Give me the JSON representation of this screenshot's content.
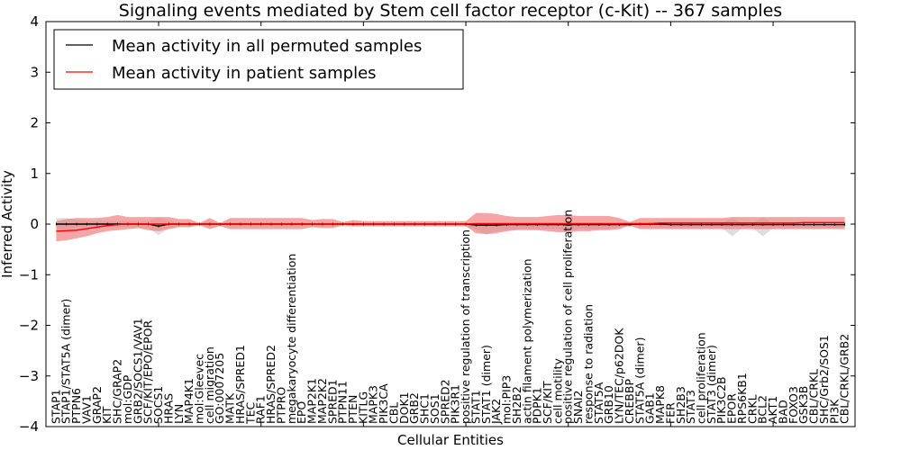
{
  "chart_data": {
    "type": "line",
    "title": "Signaling events mediated by Stem cell factor receptor (c-Kit) -- 367 samples",
    "xlabel": "Cellular Entities",
    "ylabel": "Inferred Activity",
    "ylim": [
      -4,
      4
    ],
    "xlim": [
      -1,
      78
    ],
    "yticks": [
      -4,
      -3,
      -2,
      -1,
      0,
      1,
      2,
      3,
      4
    ],
    "ytick_labels": [
      "−4",
      "−3",
      "−2",
      "−1",
      "0",
      "1",
      "2",
      "3",
      "4"
    ],
    "grid": false,
    "legend_position": "top-left",
    "legend": [
      {
        "label": "Mean activity in all permuted samples",
        "color": "#000000"
      },
      {
        "label": "Mean activity in patient samples",
        "color": "#ff0000"
      }
    ],
    "categories": [
      "STAP1",
      "STAP1/STAT5A (dimer)",
      "PTPN6",
      "VAV1",
      "GRAP2",
      "KIT",
      "SHC/GRAP2",
      "mol:GDP",
      "GRB2/SOCS1/VAV1",
      "SCF/KIT/EPO/EPOR",
      "SOCS1",
      "HRAS",
      "LYN",
      "MAP4K1",
      "mol:Gleevec",
      "cell migration",
      "GO:0007205",
      "MATK",
      "HRAS/SPRED1",
      "TEC",
      "RAF1",
      "HRAS/SPRED2",
      "PTPRO",
      "megakaryocyte differentiation",
      "EPO",
      "MAP2K1",
      "MAP2K2",
      "SPRED1",
      "PTPN11",
      "PTEN",
      "KITLG",
      "MAPK3",
      "PIK3CA",
      "CBL",
      "DOK1",
      "GRB2",
      "SHC1",
      "SOS1",
      "SPRED2",
      "PIK3R1",
      "positive regulation of transcription",
      "STAT1",
      "STAT1 (dimer)",
      "JAK2",
      "mol:PIP3",
      "SH2B2",
      "actin filament polymerization",
      "PDPK1",
      "SCF/KIT",
      "cell motility",
      "positive regulation of cell proliferation",
      "SNAI2",
      "response to radiation",
      "STAT5A",
      "GRB10",
      "LYN/TEC/p62DOK",
      "CREBBP",
      "STAT5A (dimer)",
      "GAB1",
      "MAPK8",
      "FER",
      "SH2B3",
      "STAT3",
      "cell proliferation",
      "STAT3 (dimer)",
      "PIK3C2B",
      "EPOR",
      "RPS6KB1",
      "CRKL",
      "BCL2",
      "AKT1",
      "BAD",
      "FOXO3",
      "GSK3B",
      "CBL/CRKL",
      "SHC/Grb2/SOS1",
      "PI3K",
      "CBL/CRKL/GRB2"
    ],
    "series": [
      {
        "name": "Mean activity in all permuted samples",
        "color": "#000000",
        "style": "line",
        "values": [
          0,
          0,
          0,
          0,
          0,
          0,
          0,
          0,
          0,
          0,
          -0.04,
          0,
          0,
          0,
          0,
          0,
          0,
          0,
          0,
          0,
          0,
          0,
          0,
          0,
          0,
          0,
          0,
          0,
          0,
          0,
          0,
          0,
          0,
          0,
          0,
          0,
          0,
          0,
          0,
          0,
          0,
          -0.02,
          -0.02,
          -0.02,
          -0.01,
          -0.01,
          -0.01,
          -0.01,
          -0.01,
          -0.01,
          -0.01,
          -0.01,
          -0.01,
          -0.01,
          -0.01,
          -0.01,
          -0.01,
          0,
          0,
          0,
          -0.01,
          -0.01,
          -0.01,
          -0.01,
          -0.01,
          -0.01,
          -0.01,
          -0.01,
          -0.01,
          -0.01,
          -0.01,
          -0.01,
          -0.01,
          -0.01,
          -0.01,
          -0.01,
          -0.01,
          -0.01
        ]
      },
      {
        "name": "Mean activity in patient samples",
        "color": "#ff0000",
        "style": "line",
        "values": [
          -0.14,
          -0.13,
          -0.12,
          -0.09,
          -0.06,
          -0.03,
          -0.01,
          0,
          0,
          0,
          0,
          0,
          0,
          0,
          0,
          0,
          0,
          0,
          0,
          0,
          0,
          0,
          0,
          0,
          0,
          0,
          0,
          0,
          0,
          0,
          0,
          0,
          0,
          0,
          0,
          0,
          0,
          0,
          0,
          0,
          0,
          0.01,
          0.01,
          0.01,
          0.01,
          0.01,
          0.01,
          0.01,
          0.01,
          0.01,
          0.01,
          0.01,
          0.01,
          0.01,
          0.01,
          0.01,
          0.01,
          0.01,
          0.01,
          0.02,
          0.02,
          0.02,
          0.02,
          0.02,
          0.02,
          0.02,
          0.02,
          0.02,
          0.02,
          0.02,
          0.02,
          0.02,
          0.02,
          0.03,
          0.03,
          0.03,
          0.03,
          0.03
        ]
      },
      {
        "name": "Permuted samples range",
        "color": "#d8d8d8",
        "style": "band",
        "upper": [
          0.12,
          0.12,
          0.08,
          0.06,
          0.06,
          0.06,
          0.06,
          0.06,
          0.06,
          0.06,
          0.14,
          0.06,
          0.04,
          0.04,
          0.02,
          0.06,
          0.02,
          0.04,
          0.04,
          0.04,
          0.04,
          0.04,
          0.04,
          0.04,
          0.04,
          0.04,
          0.04,
          0.04,
          0.03,
          0.03,
          0.03,
          0.03,
          0.03,
          0.03,
          0.03,
          0.03,
          0.03,
          0.03,
          0.03,
          0.03,
          0.03,
          0.02,
          0.02,
          0.02,
          0.02,
          0.02,
          0.02,
          0.02,
          0.02,
          0.02,
          0.02,
          0.02,
          0.02,
          0.02,
          0.02,
          0.02,
          0.02,
          0.02,
          0.02,
          0.02,
          0.02,
          0.02,
          0.02,
          0.02,
          0.02,
          0.02,
          0.13,
          0.02,
          0.02,
          0.13,
          0.02,
          0.02,
          0.02,
          0.02,
          0.02,
          0.02,
          0.02,
          0.02
        ],
        "lower": [
          -0.12,
          -0.1,
          -0.08,
          -0.06,
          -0.06,
          -0.06,
          -0.06,
          -0.06,
          -0.06,
          -0.08,
          -0.22,
          -0.08,
          -0.06,
          -0.06,
          -0.04,
          -0.06,
          -0.04,
          -0.05,
          -0.05,
          -0.05,
          -0.05,
          -0.05,
          -0.05,
          -0.05,
          -0.05,
          -0.05,
          -0.05,
          -0.05,
          -0.05,
          -0.05,
          -0.05,
          -0.05,
          -0.05,
          -0.05,
          -0.05,
          -0.05,
          -0.05,
          -0.05,
          -0.05,
          -0.05,
          -0.05,
          -0.12,
          -0.2,
          -0.14,
          -0.12,
          -0.1,
          -0.1,
          -0.1,
          -0.1,
          -0.1,
          -0.12,
          -0.1,
          -0.1,
          -0.1,
          -0.1,
          -0.06,
          -0.06,
          -0.08,
          -0.08,
          -0.08,
          -0.08,
          -0.08,
          -0.08,
          -0.08,
          -0.08,
          -0.08,
          -0.24,
          -0.08,
          -0.08,
          -0.24,
          -0.08,
          -0.08,
          -0.08,
          -0.08,
          -0.08,
          -0.08,
          -0.08,
          -0.08
        ]
      },
      {
        "name": "Patient samples range",
        "color": "#f08080",
        "style": "band",
        "upper": [
          0.06,
          0.1,
          0.12,
          0.12,
          0.12,
          0.14,
          0.18,
          0.14,
          0.14,
          0.14,
          0.14,
          0.14,
          0.1,
          0.1,
          0.02,
          0.12,
          0.02,
          0.12,
          0.12,
          0.12,
          0.12,
          0.12,
          0.12,
          0.12,
          0.12,
          0.08,
          0.1,
          0.1,
          0.04,
          0.08,
          0.06,
          0.06,
          0.06,
          0.06,
          0.06,
          0.06,
          0.06,
          0.06,
          0.06,
          0.06,
          0.06,
          0.22,
          0.22,
          0.2,
          0.16,
          0.14,
          0.14,
          0.14,
          0.16,
          0.18,
          0.18,
          0.16,
          0.16,
          0.16,
          0.16,
          0.12,
          0.04,
          0.12,
          0.12,
          0.12,
          0.12,
          0.12,
          0.12,
          0.12,
          0.12,
          0.12,
          0.14,
          0.14,
          0.14,
          0.14,
          0.14,
          0.14,
          0.14,
          0.14,
          0.14,
          0.14,
          0.14,
          0.14
        ],
        "lower": [
          -0.34,
          -0.32,
          -0.28,
          -0.24,
          -0.18,
          -0.14,
          -0.12,
          -0.1,
          -0.08,
          -0.12,
          -0.14,
          -0.1,
          -0.06,
          -0.06,
          -0.02,
          -0.1,
          -0.04,
          -0.1,
          -0.1,
          -0.1,
          -0.1,
          -0.1,
          -0.1,
          -0.1,
          -0.1,
          -0.06,
          -0.08,
          -0.08,
          -0.02,
          -0.04,
          -0.04,
          -0.04,
          -0.04,
          -0.04,
          -0.04,
          -0.04,
          -0.04,
          -0.04,
          -0.04,
          -0.04,
          -0.04,
          -0.18,
          -0.2,
          -0.18,
          -0.14,
          -0.12,
          -0.12,
          -0.12,
          -0.14,
          -0.16,
          -0.16,
          -0.14,
          -0.14,
          -0.12,
          -0.12,
          -0.1,
          -0.02,
          -0.1,
          -0.1,
          -0.1,
          -0.1,
          -0.1,
          -0.1,
          -0.1,
          -0.1,
          -0.1,
          -0.1,
          -0.1,
          -0.1,
          -0.1,
          -0.1,
          -0.1,
          -0.1,
          -0.1,
          -0.1,
          -0.1,
          -0.1,
          -0.1
        ]
      }
    ]
  }
}
